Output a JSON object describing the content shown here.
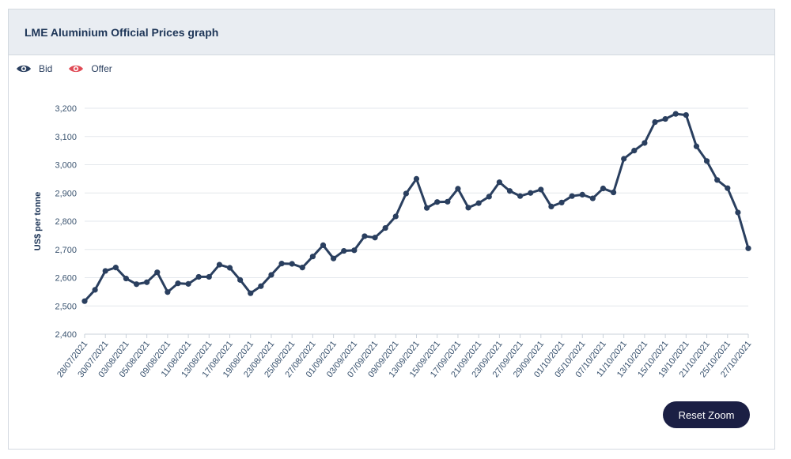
{
  "header": {
    "title": "LME Aluminium Official Prices graph"
  },
  "legend": {
    "items": [
      {
        "label": "Bid",
        "color": "#2a3f5f",
        "icon": "eye-icon"
      },
      {
        "label": "Offer",
        "color": "#e04a55",
        "icon": "eye-icon"
      }
    ]
  },
  "controls": {
    "reset_zoom_label": "Reset Zoom"
  },
  "chart_data": {
    "type": "line",
    "title": "LME Aluminium Official Prices graph",
    "xlabel": "",
    "ylabel": "US$ per tonne",
    "ylim": [
      2400,
      3200
    ],
    "yticks": [
      2400,
      2500,
      2600,
      2700,
      2800,
      2900,
      3000,
      3100,
      3200
    ],
    "ytick_labels": [
      "2,400",
      "2,500",
      "2,600",
      "2,700",
      "2,800",
      "2,900",
      "3,000",
      "3,100",
      "3,200"
    ],
    "grid": true,
    "legend_position": "top-left",
    "x_tick_labels": [
      "28/07/2021",
      "30/07/2021",
      "03/08/2021",
      "05/08/2021",
      "09/08/2021",
      "11/08/2021",
      "13/08/2021",
      "17/08/2021",
      "19/08/2021",
      "23/08/2021",
      "25/08/2021",
      "27/08/2021",
      "01/09/2021",
      "03/09/2021",
      "07/09/2021",
      "09/09/2021",
      "13/09/2021",
      "15/09/2021",
      "17/09/2021",
      "21/09/2021",
      "23/09/2021",
      "27/09/2021",
      "29/09/2021",
      "01/10/2021",
      "05/10/2021",
      "07/10/2021",
      "11/10/2021",
      "13/10/2021",
      "15/10/2021",
      "19/10/2021",
      "21/10/2021",
      "25/10/2021",
      "27/10/2021"
    ],
    "series": [
      {
        "name": "Bid",
        "color": "#2a3f5f",
        "values": [
          2517,
          2557,
          2624,
          2636,
          2597,
          2577,
          2584,
          2619,
          2549,
          2580,
          2578,
          2603,
          2603,
          2646,
          2635,
          2592,
          2545,
          2570,
          2610,
          2650,
          2649,
          2636,
          2675,
          2715,
          2668,
          2695,
          2697,
          2747,
          2742,
          2776,
          2817,
          2898,
          2950,
          2847,
          2868,
          2869,
          2915,
          2848,
          2864,
          2887,
          2938,
          2907,
          2889,
          2900,
          2912,
          2852,
          2866,
          2889,
          2894,
          2881,
          2916,
          2902,
          3021,
          3050,
          3077,
          3151,
          3162,
          3180,
          3176,
          3065,
          3013,
          2946,
          2917,
          2831,
          2704
        ]
      }
    ]
  }
}
